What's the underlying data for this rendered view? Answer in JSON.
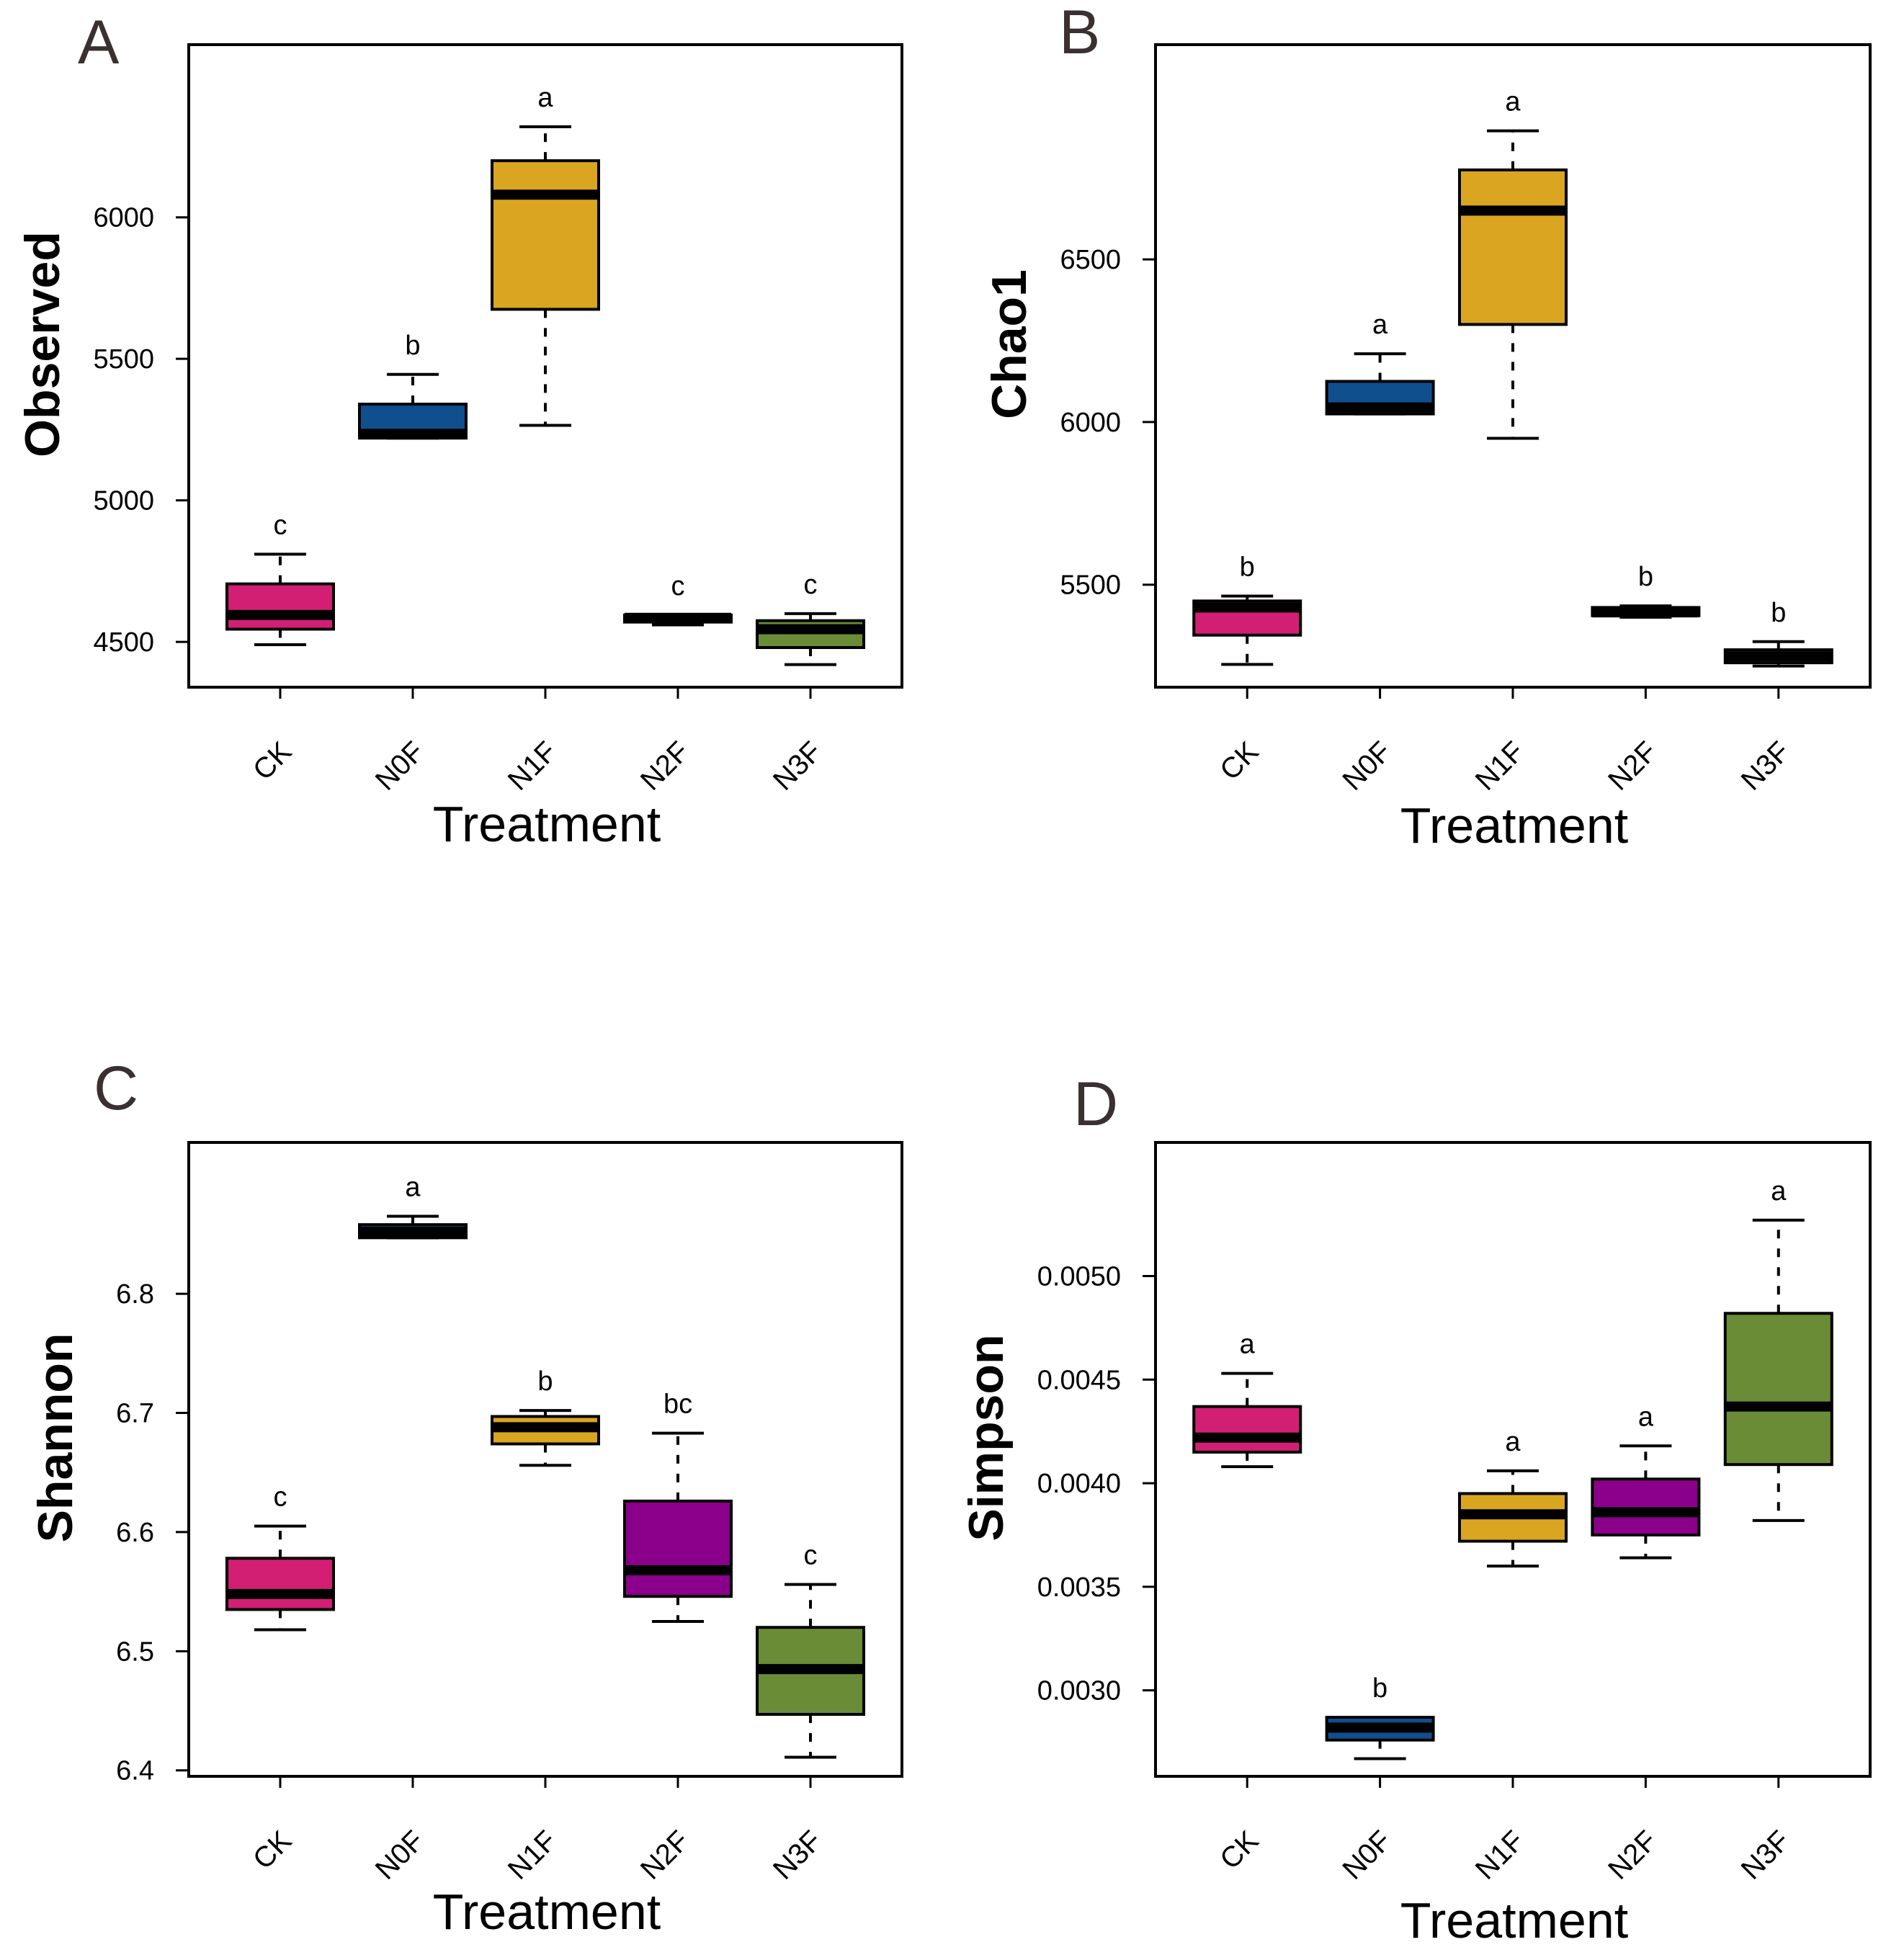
{
  "colors": {
    "CK": "#D31F73",
    "N0F": "#0F4F8E",
    "N1F": "#DAA520",
    "N2F": "#8B008B",
    "N3F": "#6A8C37",
    "frame": "#000000",
    "panel_letter": "#3A3030"
  },
  "chart_data": [
    {
      "panel_label": "A",
      "type": "box",
      "xlabel": "Treatment",
      "ylabel": "Observed",
      "ylim": [
        4340,
        6610
      ],
      "yticks": [
        4500,
        5000,
        5500,
        6000
      ],
      "ytick_labels": [
        "4500",
        "5000",
        "5500",
        "6000"
      ],
      "categories": [
        "CK",
        "N0F",
        "N1F",
        "N2F",
        "N3F"
      ],
      "boxes": [
        {
          "group": "CK",
          "whisker_low": 4490,
          "q1": 4545,
          "median": 4595,
          "q3": 4705,
          "whisker_high": 4810,
          "letter": "c"
        },
        {
          "group": "N0F",
          "whisker_low": 5220,
          "q1": 5220,
          "median": 5235,
          "q3": 5340,
          "whisker_high": 5445,
          "letter": "b"
        },
        {
          "group": "N1F",
          "whisker_low": 5265,
          "q1": 5675,
          "median": 6080,
          "q3": 6200,
          "whisker_high": 6320,
          "letter": "a"
        },
        {
          "group": "N2F",
          "whisker_low": 4560,
          "q1": 4570,
          "median": 4585,
          "q3": 4595,
          "whisker_high": 4595,
          "letter": "c"
        },
        {
          "group": "N3F",
          "whisker_low": 4420,
          "q1": 4480,
          "median": 4545,
          "q3": 4575,
          "whisker_high": 4600,
          "letter": "c"
        }
      ]
    },
    {
      "panel_label": "B",
      "type": "box",
      "xlabel": "Treatment",
      "ylabel": "Chao1",
      "ylim": [
        5185,
        7160
      ],
      "yticks": [
        5500,
        6000,
        6500
      ],
      "ytick_labels": [
        "5500",
        "6000",
        "6500"
      ],
      "categories": [
        "CK",
        "N0F",
        "N1F",
        "N2F",
        "N3F"
      ],
      "boxes": [
        {
          "group": "CK",
          "whisker_low": 5255,
          "q1": 5345,
          "median": 5430,
          "q3": 5450,
          "whisker_high": 5465,
          "letter": "b"
        },
        {
          "group": "N0F",
          "whisker_low": 6025,
          "q1": 6025,
          "median": 6045,
          "q3": 6125,
          "whisker_high": 6210,
          "letter": "a"
        },
        {
          "group": "N1F",
          "whisker_low": 5950,
          "q1": 6300,
          "median": 6650,
          "q3": 6775,
          "whisker_high": 6895,
          "letter": "a"
        },
        {
          "group": "N2F",
          "whisker_low": 5400,
          "q1": 5405,
          "median": 5415,
          "q3": 5430,
          "whisker_high": 5435,
          "letter": "b"
        },
        {
          "group": "N3F",
          "whisker_low": 5250,
          "q1": 5260,
          "median": 5280,
          "q3": 5300,
          "whisker_high": 5325,
          "letter": "b"
        }
      ]
    },
    {
      "panel_label": "C",
      "type": "box",
      "xlabel": "Treatment",
      "ylabel": "Shannon",
      "ylim": [
        6.395,
        6.927
      ],
      "yticks": [
        6.4,
        6.5,
        6.6,
        6.7,
        6.8
      ],
      "ytick_labels": [
        "6.4",
        "6.5",
        "6.6",
        "6.7",
        "6.8"
      ],
      "categories": [
        "CK",
        "N0F",
        "N1F",
        "N2F",
        "N3F"
      ],
      "boxes": [
        {
          "group": "CK",
          "whisker_low": 6.518,
          "q1": 6.535,
          "median": 6.548,
          "q3": 6.578,
          "whisker_high": 6.605,
          "letter": "c"
        },
        {
          "group": "N0F",
          "whisker_low": 6.847,
          "q1": 6.847,
          "median": 6.852,
          "q3": 6.858,
          "whisker_high": 6.865,
          "letter": "a"
        },
        {
          "group": "N1F",
          "whisker_low": 6.656,
          "q1": 6.674,
          "median": 6.688,
          "q3": 6.697,
          "whisker_high": 6.702,
          "letter": "b"
        },
        {
          "group": "N2F",
          "whisker_low": 6.525,
          "q1": 6.546,
          "median": 6.568,
          "q3": 6.626,
          "whisker_high": 6.683,
          "letter": "bc"
        },
        {
          "group": "N3F",
          "whisker_low": 6.411,
          "q1": 6.447,
          "median": 6.485,
          "q3": 6.52,
          "whisker_high": 6.556,
          "letter": "c"
        }
      ]
    },
    {
      "panel_label": "D",
      "type": "box",
      "xlabel": "Treatment",
      "ylabel": "Simpson",
      "ylim": [
        0.002585,
        0.005645
      ],
      "yticks": [
        0.003,
        0.0035,
        0.004,
        0.0045,
        0.005
      ],
      "ytick_labels": [
        "0.0030",
        "0.0035",
        "0.0040",
        "0.0045",
        "0.0050"
      ],
      "categories": [
        "CK",
        "N0F",
        "N1F",
        "N2F",
        "N3F"
      ],
      "boxes": [
        {
          "group": "CK",
          "whisker_low": 0.00408,
          "q1": 0.00415,
          "median": 0.00422,
          "q3": 0.00437,
          "whisker_high": 0.00453,
          "letter": "a"
        },
        {
          "group": "N0F",
          "whisker_low": 0.00267,
          "q1": 0.00276,
          "median": 0.00282,
          "q3": 0.00287,
          "whisker_high": 0.00287,
          "letter": "b"
        },
        {
          "group": "N1F",
          "whisker_low": 0.0036,
          "q1": 0.00372,
          "median": 0.00385,
          "q3": 0.00395,
          "whisker_high": 0.00406,
          "letter": "a"
        },
        {
          "group": "N2F",
          "whisker_low": 0.00364,
          "q1": 0.00375,
          "median": 0.00386,
          "q3": 0.00402,
          "whisker_high": 0.00418,
          "letter": "a"
        },
        {
          "group": "N3F",
          "whisker_low": 0.00382,
          "q1": 0.00409,
          "median": 0.00437,
          "q3": 0.00482,
          "whisker_high": 0.00527,
          "letter": "a"
        }
      ]
    }
  ]
}
